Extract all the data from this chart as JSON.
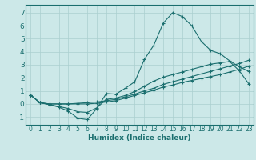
{
  "background_color": "#cce8e8",
  "grid_color": "#aacfcf",
  "line_color": "#1a6e6e",
  "xlabel": "Humidex (Indice chaleur)",
  "xlim": [
    -0.5,
    23.5
  ],
  "ylim": [
    -1.6,
    7.6
  ],
  "yticks": [
    -1,
    0,
    1,
    2,
    3,
    4,
    5,
    6,
    7
  ],
  "xticks": [
    0,
    1,
    2,
    3,
    4,
    5,
    6,
    7,
    8,
    9,
    10,
    11,
    12,
    13,
    14,
    15,
    16,
    17,
    18,
    19,
    20,
    21,
    22,
    23
  ],
  "line1": {
    "x": [
      0,
      1,
      2,
      3,
      4,
      5,
      6,
      7,
      8,
      9,
      10,
      11,
      12,
      13,
      14,
      15,
      16,
      17,
      18,
      19,
      20,
      21,
      22,
      23
    ],
    "y": [
      0.7,
      0.1,
      -0.05,
      -0.25,
      -0.55,
      -1.1,
      -1.2,
      -0.35,
      0.8,
      0.75,
      1.2,
      1.7,
      3.4,
      4.5,
      6.2,
      7.0,
      6.7,
      6.0,
      4.8,
      4.1,
      3.85,
      3.3,
      2.85,
      2.5
    ]
  },
  "line2": {
    "x": [
      0,
      1,
      2,
      3,
      4,
      5,
      6,
      7,
      8,
      9,
      10,
      11,
      12,
      13,
      14,
      15,
      16,
      17,
      18,
      19,
      20,
      21,
      22,
      23
    ],
    "y": [
      0.7,
      0.1,
      0.0,
      0.0,
      0.0,
      0.05,
      0.1,
      0.15,
      0.25,
      0.35,
      0.55,
      0.75,
      1.0,
      1.2,
      1.5,
      1.7,
      1.9,
      2.1,
      2.3,
      2.5,
      2.7,
      2.9,
      3.1,
      3.35
    ]
  },
  "line3": {
    "x": [
      0,
      1,
      2,
      3,
      4,
      5,
      6,
      7,
      8,
      9,
      10,
      11,
      12,
      13,
      14,
      15,
      16,
      17,
      18,
      19,
      20,
      21,
      22,
      23
    ],
    "y": [
      0.7,
      0.1,
      0.0,
      0.0,
      0.0,
      0.0,
      0.0,
      0.05,
      0.15,
      0.25,
      0.45,
      0.65,
      0.85,
      1.05,
      1.3,
      1.45,
      1.65,
      1.8,
      1.95,
      2.1,
      2.25,
      2.45,
      2.65,
      2.9
    ]
  },
  "line4": {
    "x": [
      0,
      1,
      2,
      3,
      4,
      5,
      6,
      7,
      8,
      9,
      10,
      11,
      12,
      13,
      14,
      15,
      16,
      17,
      18,
      19,
      20,
      21,
      22,
      23
    ],
    "y": [
      0.7,
      0.1,
      -0.05,
      -0.2,
      -0.35,
      -0.6,
      -0.65,
      -0.3,
      0.35,
      0.45,
      0.65,
      0.95,
      1.35,
      1.75,
      2.05,
      2.25,
      2.45,
      2.65,
      2.85,
      3.05,
      3.15,
      3.25,
      2.55,
      1.55
    ]
  }
}
